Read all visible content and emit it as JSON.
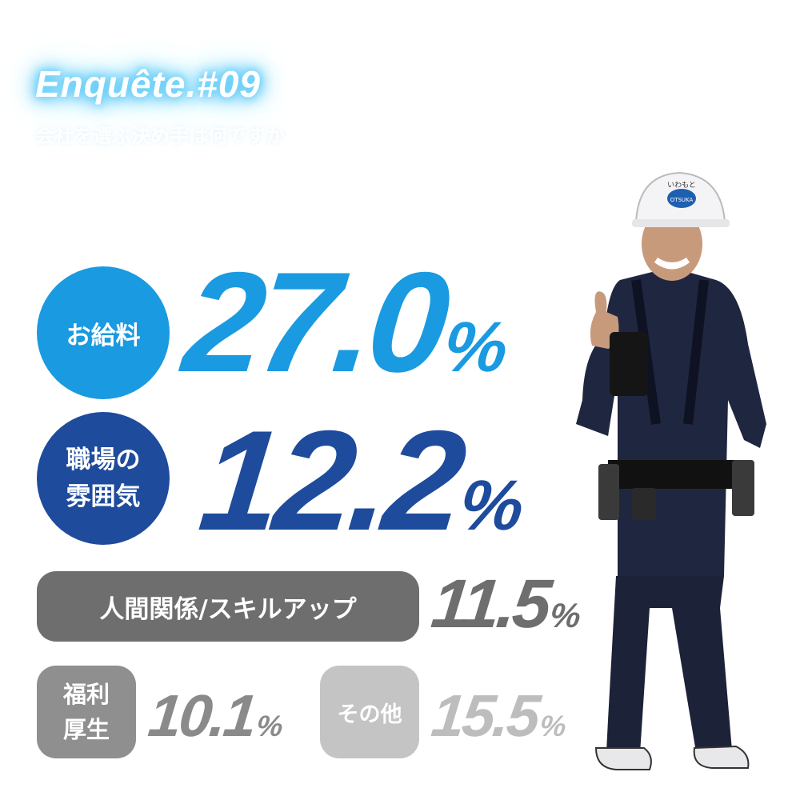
{
  "header": {
    "title": "Enquête.#09",
    "subtitle": "会社を選ぶ決め手は何ですか"
  },
  "colors": {
    "salary": "#1a9ae0",
    "atmosphere": "#1e4b9c",
    "relations": "#6e6e6e",
    "welfare": "#8f8f8f",
    "other": "#c4c4c4",
    "welfare_text": "#8a8a8a",
    "other_text": "#bdbdbd"
  },
  "items": [
    {
      "label_lines": [
        "お給料"
      ],
      "value": "27.0",
      "unit": "%",
      "percent": 27.0
    },
    {
      "label_lines": [
        "職場の",
        "雰囲気"
      ],
      "value": "12.2",
      "unit": "%",
      "percent": 12.2
    },
    {
      "label_lines": [
        "人間関係/スキルアップ"
      ],
      "value": "11.5",
      "unit": "%",
      "percent": 11.5
    },
    {
      "label_lines": [
        "福利",
        "厚生"
      ],
      "value": "10.1",
      "unit": "%",
      "percent": 10.1
    },
    {
      "label_lines": [
        "その他"
      ],
      "value": "15.5",
      "unit": "%",
      "percent": 15.5
    }
  ],
  "worker": {
    "helmet_text": "いわもと",
    "helmet_logo": "OTSUKA"
  }
}
